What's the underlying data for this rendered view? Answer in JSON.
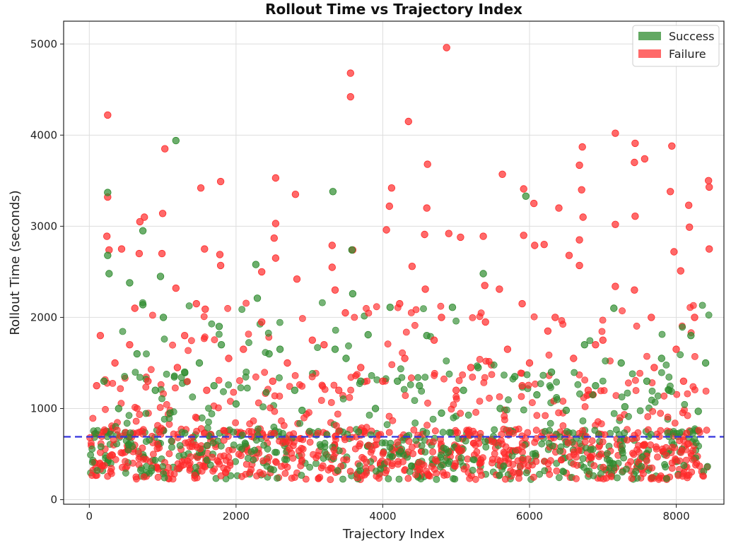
{
  "chart_data": {
    "type": "scatter",
    "title": "Rollout Time vs Trajectory Index",
    "xlabel": "Trajectory Index",
    "ylabel": "Rollout Time (seconds)",
    "xlim": [
      -350,
      8650
    ],
    "ylim": [
      -50,
      5250
    ],
    "xticks": [
      0,
      2000,
      4000,
      6000,
      8000
    ],
    "yticks": [
      0,
      1000,
      2000,
      3000,
      4000,
      5000
    ],
    "xtick_labels": [
      "0",
      "2000",
      "4000",
      "6000",
      "8000"
    ],
    "ytick_labels": [
      "0",
      "1000",
      "2000",
      "3000",
      "4000",
      "5000"
    ],
    "grid": true,
    "legend_position": "top-right",
    "reference_line": {
      "y": 690,
      "style": "dashed",
      "color": "#3333dd"
    },
    "series": [
      {
        "name": "Success",
        "color": "#2e8b2e",
        "points": [
          [
            1180,
            3940
          ],
          [
            250,
            3370
          ],
          [
            3320,
            3380
          ],
          [
            730,
            2950
          ],
          [
            3580,
            2740
          ],
          [
            250,
            2680
          ],
          [
            970,
            2450
          ],
          [
            270,
            2480
          ],
          [
            2270,
            2580
          ],
          [
            5370,
            2480
          ],
          [
            550,
            2380
          ],
          [
            3590,
            2260
          ],
          [
            730,
            2140
          ],
          [
            2290,
            2210
          ],
          [
            4950,
            2110
          ],
          [
            4100,
            2110
          ],
          [
            7150,
            2100
          ],
          [
            1010,
            2000
          ],
          [
            1770,
            1900
          ],
          [
            4600,
            1800
          ],
          [
            3800,
            1810
          ],
          [
            1800,
            1700
          ],
          [
            2600,
            1650
          ],
          [
            6750,
            1700
          ],
          [
            8200,
            1800
          ],
          [
            5950,
            3330
          ],
          [
            5300,
            1450
          ],
          [
            1500,
            1500
          ],
          [
            2450,
            1600
          ],
          [
            3500,
            1550
          ],
          [
            7250,
            1500
          ],
          [
            7800,
            1550
          ],
          [
            650,
            1600
          ],
          [
            1300,
            1400
          ],
          [
            3350,
            1650
          ],
          [
            4200,
            1300
          ],
          [
            5800,
            1350
          ],
          [
            6300,
            1400
          ],
          [
            7600,
            1300
          ],
          [
            8400,
            1500
          ],
          [
            200,
            1300
          ],
          [
            900,
            1200
          ],
          [
            1700,
            1250
          ],
          [
            2800,
            1200
          ],
          [
            3700,
            1300
          ],
          [
            4500,
            1250
          ],
          [
            5100,
            1200
          ],
          [
            6100,
            1150
          ],
          [
            6900,
            1250
          ],
          [
            7900,
            1200
          ],
          [
            400,
            1000
          ],
          [
            1100,
            950
          ],
          [
            2000,
            1050
          ],
          [
            2900,
            980
          ],
          [
            3900,
            1000
          ],
          [
            4800,
            950
          ],
          [
            5600,
            1000
          ],
          [
            6500,
            980
          ],
          [
            7300,
            1020
          ],
          [
            8300,
            970
          ]
        ]
      },
      {
        "name": "Failure",
        "color": "#ff2a2a",
        "points": [
          [
            4870,
            4960
          ],
          [
            3560,
            4680
          ],
          [
            3560,
            4420
          ],
          [
            250,
            4220
          ],
          [
            4350,
            4150
          ],
          [
            7170,
            4020
          ],
          [
            7440,
            3910
          ],
          [
            1030,
            3850
          ],
          [
            7940,
            3880
          ],
          [
            6720,
            3870
          ],
          [
            7430,
            3700
          ],
          [
            7570,
            3740
          ],
          [
            6680,
            3670
          ],
          [
            4610,
            3680
          ],
          [
            5630,
            3570
          ],
          [
            2540,
            3530
          ],
          [
            1790,
            3490
          ],
          [
            8440,
            3500
          ],
          [
            8450,
            3430
          ],
          [
            4120,
            3420
          ],
          [
            5920,
            3410
          ],
          [
            6710,
            3400
          ],
          [
            1520,
            3420
          ],
          [
            2810,
            3350
          ],
          [
            7920,
            3380
          ],
          [
            250,
            3320
          ],
          [
            6060,
            3250
          ],
          [
            6400,
            3200
          ],
          [
            4090,
            3220
          ],
          [
            4600,
            3200
          ],
          [
            750,
            3100
          ],
          [
            6730,
            3100
          ],
          [
            1000,
            3140
          ],
          [
            7440,
            3110
          ],
          [
            690,
            3050
          ],
          [
            2540,
            3030
          ],
          [
            8170,
            3230
          ],
          [
            7170,
            3020
          ],
          [
            8180,
            2990
          ],
          [
            4050,
            2960
          ],
          [
            4570,
            2910
          ],
          [
            4900,
            2920
          ],
          [
            5060,
            2880
          ],
          [
            2520,
            2870
          ],
          [
            5370,
            2890
          ],
          [
            240,
            2890
          ],
          [
            5920,
            2900
          ],
          [
            6680,
            2850
          ],
          [
            6070,
            2790
          ],
          [
            3310,
            2790
          ],
          [
            440,
            2750
          ],
          [
            3590,
            2740
          ],
          [
            1570,
            2750
          ],
          [
            270,
            2740
          ],
          [
            6200,
            2800
          ],
          [
            7970,
            2720
          ],
          [
            1780,
            2690
          ],
          [
            6540,
            2680
          ],
          [
            2540,
            2650
          ],
          [
            8450,
            2750
          ],
          [
            680,
            2700
          ],
          [
            990,
            2700
          ],
          [
            5590,
            2310
          ],
          [
            3310,
            2550
          ],
          [
            4400,
            2560
          ],
          [
            1790,
            2570
          ],
          [
            6680,
            2570
          ],
          [
            7170,
            2340
          ],
          [
            7430,
            2300
          ],
          [
            1180,
            2320
          ],
          [
            2350,
            2500
          ],
          [
            2830,
            2420
          ],
          [
            5390,
            2350
          ],
          [
            8060,
            2510
          ],
          [
            4230,
            2150
          ],
          [
            620,
            2100
          ],
          [
            1580,
            2090
          ],
          [
            3350,
            2300
          ],
          [
            4580,
            2310
          ],
          [
            5900,
            2150
          ],
          [
            6350,
            2000
          ],
          [
            7660,
            2000
          ],
          [
            3490,
            2050
          ],
          [
            1460,
            2150
          ],
          [
            2350,
            1950
          ],
          [
            3040,
            1750
          ],
          [
            4800,
            2000
          ],
          [
            5400,
            1950
          ],
          [
            6250,
            1850
          ],
          [
            7000,
            1750
          ],
          [
            8250,
            2000
          ],
          [
            150,
            1800
          ],
          [
            550,
            1700
          ],
          [
            1300,
            1800
          ],
          [
            2100,
            1650
          ],
          [
            3200,
            1700
          ],
          [
            4700,
            1750
          ],
          [
            5700,
            1650
          ],
          [
            6900,
            1700
          ],
          [
            8000,
            1650
          ],
          [
            350,
            1500
          ],
          [
            1200,
            1450
          ],
          [
            1900,
            1550
          ],
          [
            2700,
            1500
          ],
          [
            3700,
            1450
          ],
          [
            4300,
            1550
          ],
          [
            5200,
            1450
          ],
          [
            6000,
            1500
          ],
          [
            6600,
            1550
          ],
          [
            7700,
            1450
          ],
          [
            100,
            1250
          ],
          [
            800,
            1300
          ],
          [
            1600,
            1200
          ],
          [
            2500,
            1300
          ],
          [
            3400,
            1200
          ],
          [
            4000,
            1300
          ],
          [
            5000,
            1200
          ],
          [
            5900,
            1250
          ],
          [
            6800,
            1200
          ],
          [
            8100,
            1300
          ]
        ]
      }
    ]
  }
}
